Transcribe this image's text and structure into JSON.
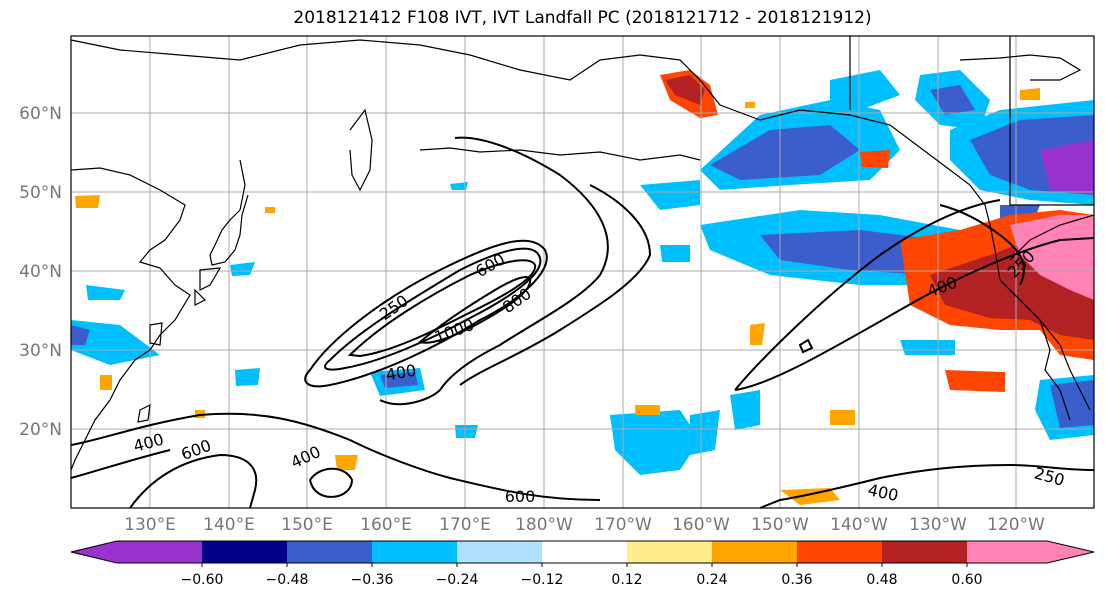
{
  "title": "2018121412 F108 IVT, IVT Landfall PC (2018121712 - 2018121912)",
  "lat_labels": [
    "60°N",
    "50°N",
    "40°N",
    "30°N",
    "20°N"
  ],
  "lon_labels": [
    "130°E",
    "140°E",
    "150°E",
    "160°E",
    "170°E",
    "180°W",
    "170°W",
    "160°W",
    "150°W",
    "140°W",
    "130°W",
    "120°W"
  ],
  "contour_labels": [
    "250",
    "600",
    "800",
    "1000",
    "400",
    "400",
    "600",
    "400",
    "600",
    "400",
    "250",
    "400",
    "250"
  ],
  "colorbar": {
    "ticks": [
      "−0.60",
      "−0.48",
      "−0.36",
      "−0.24",
      "−0.12",
      "0.12",
      "0.24",
      "0.36",
      "0.48",
      "0.60"
    ],
    "colors": [
      "#9932cc",
      "#00008b",
      "#3a5fcd",
      "#00bfff",
      "#b0e2ff",
      "#ffffff",
      "#ffec8b",
      "#ffa500",
      "#ff4500",
      "#b22222",
      "#ff83b4"
    ]
  }
}
